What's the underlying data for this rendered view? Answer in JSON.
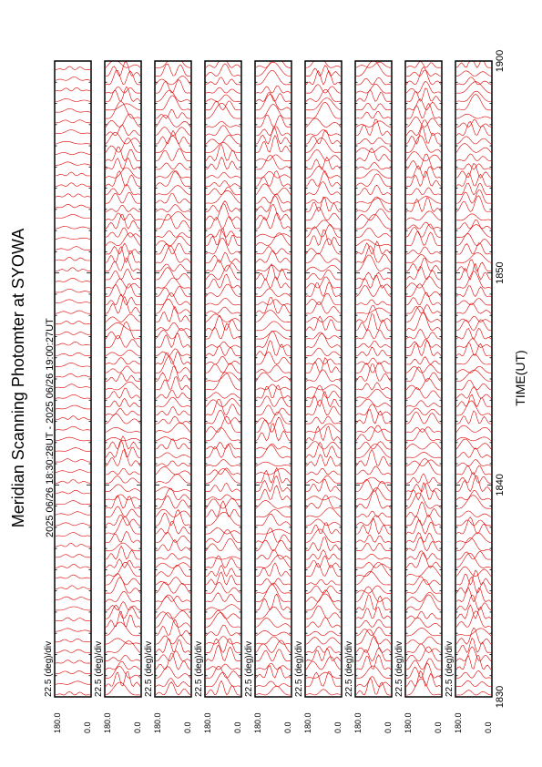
{
  "title": "Meridian Scanning Photomter at SYOWA",
  "subtitle": "2025 06/26 18:30:28UT - 2025 06/26 19:00:27UT",
  "time_axis": {
    "label": "TIME(UT)",
    "ticks": [
      "1830",
      "1840",
      "1850",
      "1900"
    ]
  },
  "panels": [
    {
      "scale": "22.5 (deg)/div",
      "ymax": "180.0",
      "ymin": "0.0"
    },
    {
      "scale": "22.5 (deg)/div",
      "ymax": "180.0",
      "ymin": "0.0"
    },
    {
      "scale": "22.5 (deg)/div",
      "ymax": "180.0",
      "ymin": "0.0"
    },
    {
      "scale": "22.5 (deg)/div",
      "ymax": "180.0",
      "ymin": "0.0"
    },
    {
      "scale": "22.5 (deg)/div",
      "ymax": "180.0",
      "ymin": "0.0"
    },
    {
      "scale": "22.5 (deg)/div",
      "ymax": "180.0",
      "ymin": "0.0"
    },
    {
      "scale": "22.5 (deg)/div",
      "ymax": "180.0",
      "ymin": "0.0"
    },
    {
      "scale": "22.5 (deg)/div",
      "ymax": "180.0",
      "ymin": "0.0"
    },
    {
      "scale": "22.5 (deg)/div",
      "ymax": "180.0",
      "ymin": "0.0"
    }
  ]
}
